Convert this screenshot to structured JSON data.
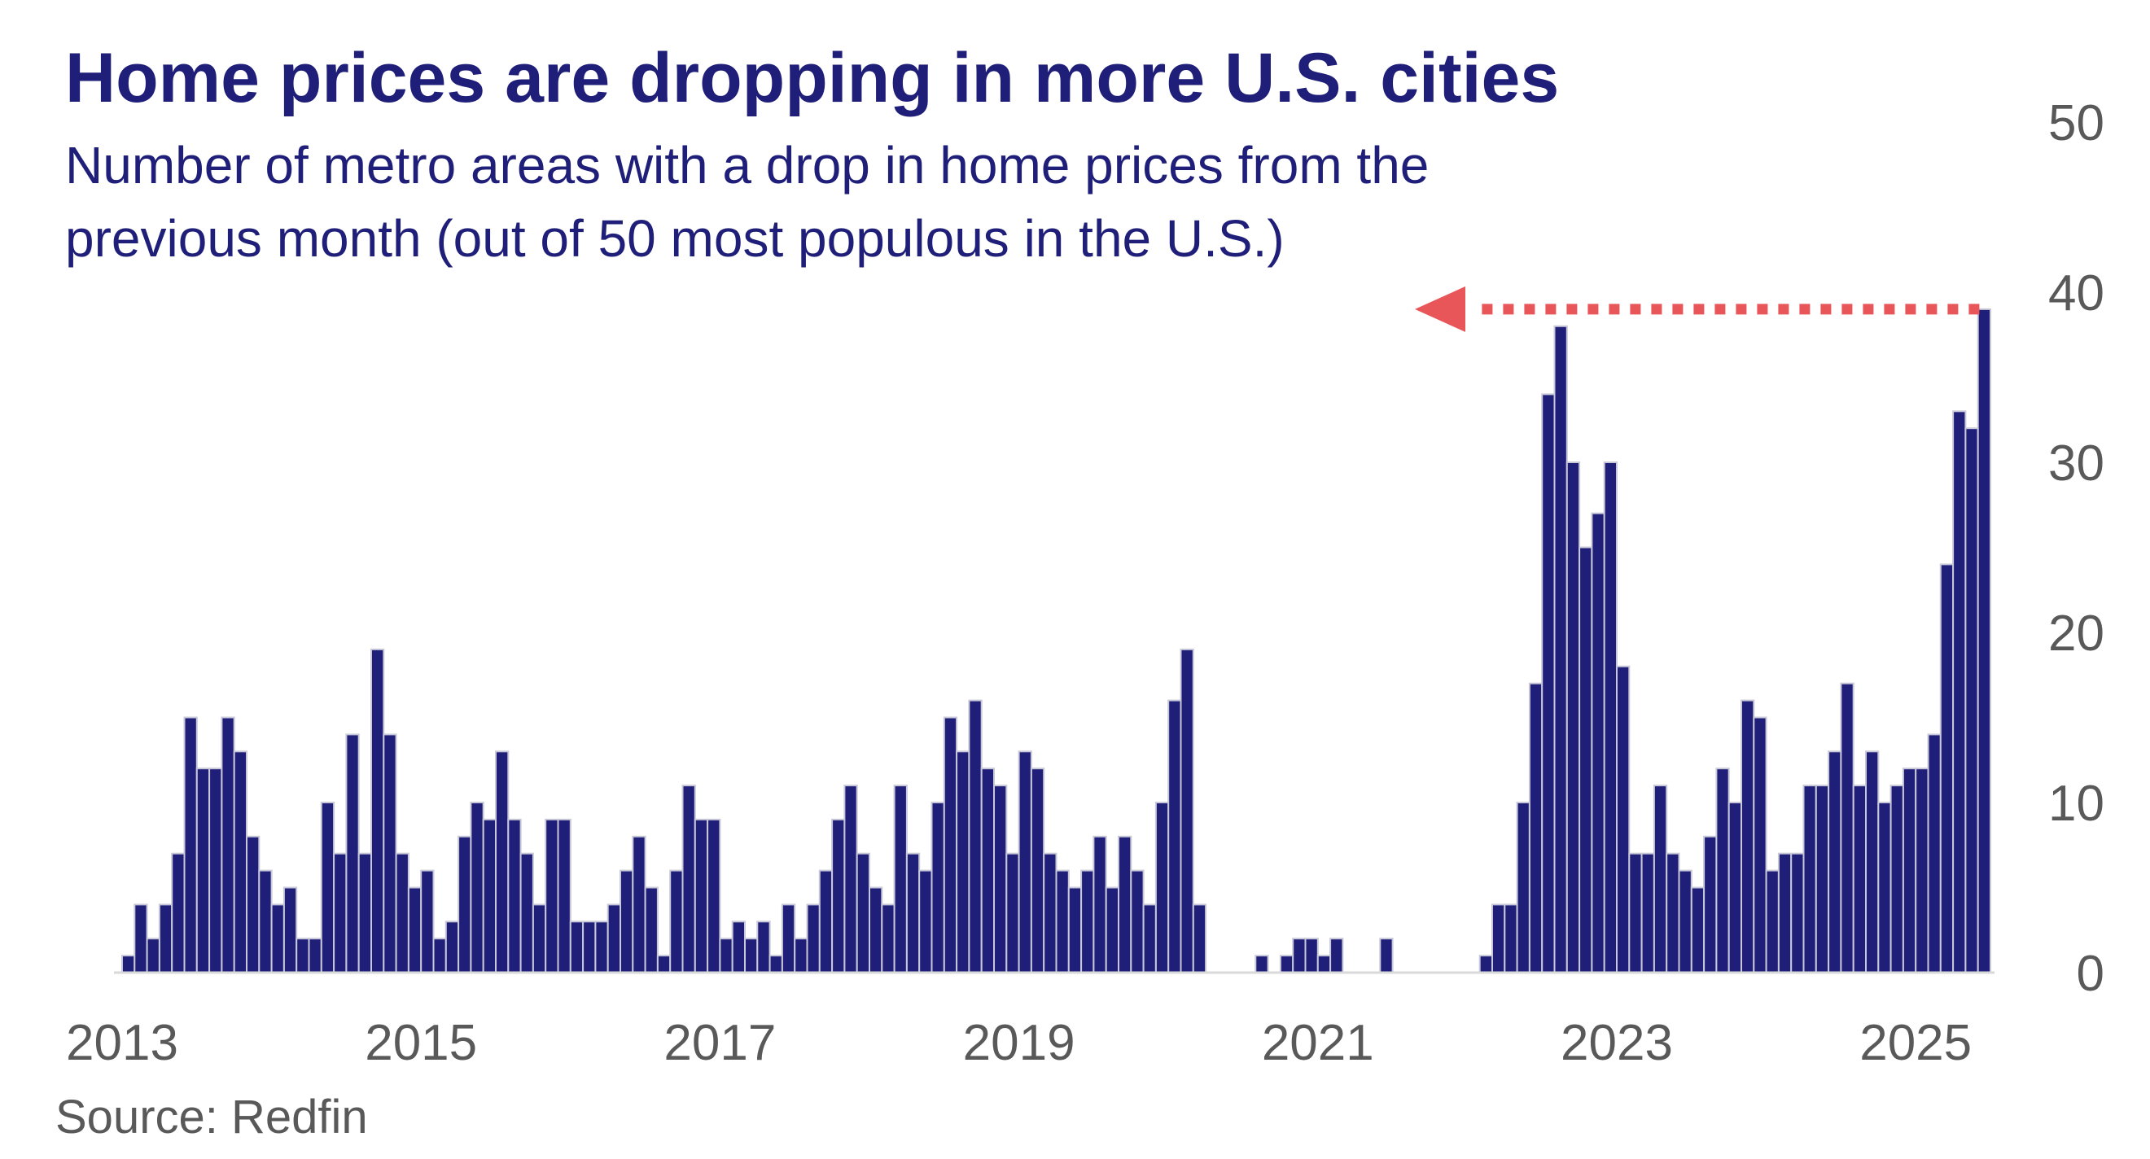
{
  "chart_data": {
    "type": "bar",
    "title": "Home prices are dropping in more U.S. cities",
    "subtitle_lines": [
      "Number of metro areas with a drop in home prices from the",
      "previous month (out of 50 most populous in the U.S.)"
    ],
    "source": "Source: Redfin",
    "x_start": "2013-01",
    "x_tick_labels": [
      "2013",
      "2015",
      "2017",
      "2019",
      "2021",
      "2023",
      "2025"
    ],
    "y_tick_labels": [
      "0",
      "10",
      "20",
      "30",
      "40",
      "50"
    ],
    "ylim": [
      0,
      50
    ],
    "y_axis_position": "right",
    "grid": false,
    "bar_color": "#1f1f7a",
    "bar_edge_color": "#c8c8d8",
    "arrow_color": "#e8565a",
    "arrow_level": 39,
    "values": [
      1,
      4,
      2,
      4,
      7,
      15,
      12,
      12,
      15,
      13,
      8,
      6,
      4,
      5,
      2,
      2,
      10,
      7,
      14,
      7,
      19,
      14,
      7,
      5,
      6,
      2,
      3,
      8,
      10,
      9,
      13,
      9,
      7,
      4,
      9,
      9,
      3,
      3,
      3,
      4,
      6,
      8,
      5,
      1,
      6,
      11,
      9,
      9,
      2,
      3,
      2,
      3,
      1,
      4,
      2,
      4,
      6,
      9,
      11,
      7,
      5,
      4,
      11,
      7,
      6,
      10,
      15,
      13,
      16,
      12,
      11,
      7,
      13,
      12,
      7,
      6,
      5,
      6,
      8,
      5,
      8,
      6,
      4,
      10,
      16,
      19,
      4,
      0,
      0,
      0,
      0,
      1,
      0,
      1,
      2,
      2,
      1,
      2,
      0,
      0,
      0,
      2,
      0,
      0,
      0,
      0,
      0,
      0,
      0,
      1,
      4,
      4,
      10,
      17,
      34,
      38,
      30,
      25,
      27,
      30,
      18,
      7,
      7,
      11,
      7,
      6,
      5,
      8,
      12,
      10,
      16,
      15,
      6,
      7,
      7,
      11,
      11,
      13,
      17,
      11,
      13,
      10,
      11,
      12,
      12,
      14,
      24,
      33,
      32,
      39
    ]
  }
}
